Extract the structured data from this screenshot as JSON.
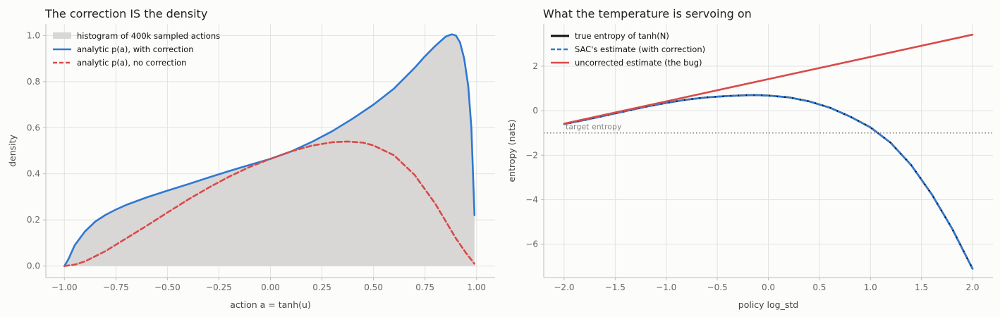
{
  "chart_data": [
    {
      "type": "line",
      "title": "The correction IS the density",
      "xlabel": "action a = tanh(u)",
      "ylabel": "density",
      "xlim": [
        -1.09,
        1.09
      ],
      "ylim": [
        -0.05,
        1.05
      ],
      "xticks": [
        -1.0,
        -0.75,
        -0.5,
        -0.25,
        0.0,
        0.25,
        0.5,
        0.75,
        1.0
      ],
      "xtick_labels": [
        "−1.00",
        "−0.75",
        "−0.50",
        "−0.25",
        "0.00",
        "0.25",
        "0.50",
        "0.75",
        "1.00"
      ],
      "yticks": [
        0.0,
        0.2,
        0.4,
        0.6,
        0.8,
        1.0
      ],
      "ytick_labels": [
        "0.0",
        "0.2",
        "0.4",
        "0.6",
        "0.8",
        "1.0"
      ],
      "grid": true,
      "legend": "top-left",
      "series": [
        {
          "name": "histogram of 400k sampled actions",
          "kind": "area",
          "color": "#d8d7d6",
          "x": [
            -1.0,
            -0.98,
            -0.95,
            -0.9,
            -0.85,
            -0.8,
            -0.75,
            -0.7,
            -0.6,
            -0.5,
            -0.4,
            -0.3,
            -0.2,
            -0.1,
            0.0,
            0.1,
            0.2,
            0.3,
            0.4,
            0.5,
            0.55,
            0.6,
            0.65,
            0.7,
            0.75,
            0.8,
            0.85,
            0.88,
            0.9,
            0.92,
            0.94,
            0.96,
            0.975,
            0.99
          ],
          "values": [
            0.0,
            0.03,
            0.09,
            0.15,
            0.193,
            0.222,
            0.245,
            0.265,
            0.298,
            0.327,
            0.355,
            0.384,
            0.412,
            0.439,
            0.465,
            0.497,
            0.538,
            0.585,
            0.64,
            0.7,
            0.735,
            0.77,
            0.815,
            0.86,
            0.91,
            0.955,
            0.995,
            1.005,
            1.0,
            0.97,
            0.9,
            0.78,
            0.6,
            0.22
          ]
        },
        {
          "name": "analytic p(a), with correction",
          "kind": "line",
          "color": "#2f78d1",
          "dash": "solid",
          "x": [
            -1.0,
            -0.98,
            -0.95,
            -0.9,
            -0.85,
            -0.8,
            -0.75,
            -0.7,
            -0.6,
            -0.5,
            -0.4,
            -0.3,
            -0.2,
            -0.1,
            0.0,
            0.1,
            0.2,
            0.3,
            0.4,
            0.5,
            0.55,
            0.6,
            0.65,
            0.7,
            0.75,
            0.8,
            0.85,
            0.88,
            0.9,
            0.92,
            0.94,
            0.96,
            0.975,
            0.99
          ],
          "values": [
            0.0,
            0.03,
            0.09,
            0.15,
            0.193,
            0.222,
            0.245,
            0.265,
            0.298,
            0.327,
            0.355,
            0.384,
            0.412,
            0.439,
            0.465,
            0.497,
            0.538,
            0.585,
            0.64,
            0.7,
            0.735,
            0.77,
            0.815,
            0.86,
            0.91,
            0.955,
            0.995,
            1.005,
            1.0,
            0.97,
            0.9,
            0.78,
            0.6,
            0.22
          ]
        },
        {
          "name": "analytic p(a), no correction",
          "kind": "line",
          "color": "#d94a48",
          "dash": "dashed",
          "x": [
            -1.0,
            -0.95,
            -0.9,
            -0.8,
            -0.7,
            -0.6,
            -0.5,
            -0.4,
            -0.3,
            -0.2,
            -0.1,
            0.0,
            0.1,
            0.2,
            0.3,
            0.375,
            0.45,
            0.5,
            0.6,
            0.7,
            0.8,
            0.9,
            0.95,
            0.99
          ],
          "values": [
            0.0,
            0.006,
            0.02,
            0.065,
            0.12,
            0.175,
            0.232,
            0.288,
            0.34,
            0.388,
            0.43,
            0.465,
            0.497,
            0.522,
            0.537,
            0.54,
            0.535,
            0.523,
            0.48,
            0.395,
            0.27,
            0.12,
            0.055,
            0.01
          ]
        }
      ]
    },
    {
      "type": "line",
      "title": "What the temperature is servoing on",
      "xlabel": "policy log_std",
      "ylabel": "entropy (nats)",
      "xlim": [
        -2.2,
        2.2
      ],
      "ylim": [
        -7.5,
        3.9
      ],
      "xticks": [
        -2.0,
        -1.5,
        -1.0,
        -0.5,
        0.0,
        0.5,
        1.0,
        1.5,
        2.0
      ],
      "xtick_labels": [
        "−2.0",
        "−1.5",
        "−1.0",
        "−0.5",
        "0.0",
        "0.5",
        "1.0",
        "1.5",
        "2.0"
      ],
      "yticks": [
        -6,
        -4,
        -2,
        0,
        2
      ],
      "ytick_labels": [
        "−6",
        "−4",
        "−2",
        "0",
        "2"
      ],
      "grid": true,
      "legend": "top-left",
      "annotations": [
        {
          "text": "target entropy",
          "y": -1.0
        }
      ],
      "series": [
        {
          "name": "true entropy of tanh(N)",
          "kind": "line",
          "color": "#111111",
          "dash": "solid",
          "x": [
            -2.0,
            -1.8,
            -1.6,
            -1.4,
            -1.2,
            -1.0,
            -0.8,
            -0.6,
            -0.4,
            -0.2,
            -0.1,
            0.0,
            0.2,
            0.4,
            0.6,
            0.8,
            1.0,
            1.2,
            1.4,
            1.6,
            1.8,
            2.0
          ],
          "values": [
            -0.6,
            -0.42,
            -0.22,
            -0.02,
            0.18,
            0.35,
            0.5,
            0.6,
            0.66,
            0.7,
            0.7,
            0.68,
            0.6,
            0.42,
            0.14,
            -0.26,
            -0.75,
            -1.45,
            -2.45,
            -3.75,
            -5.3,
            -7.1
          ]
        },
        {
          "name": "SAC's estimate (with correction)",
          "kind": "line",
          "color": "#2f78d1",
          "dash": "dashed",
          "x": [
            -2.0,
            -1.8,
            -1.6,
            -1.4,
            -1.2,
            -1.0,
            -0.8,
            -0.6,
            -0.4,
            -0.2,
            -0.1,
            0.0,
            0.2,
            0.4,
            0.6,
            0.8,
            1.0,
            1.2,
            1.4,
            1.6,
            1.8,
            2.0
          ],
          "values": [
            -0.6,
            -0.42,
            -0.22,
            -0.02,
            0.18,
            0.35,
            0.5,
            0.6,
            0.66,
            0.7,
            0.7,
            0.68,
            0.6,
            0.42,
            0.14,
            -0.26,
            -0.75,
            -1.45,
            -2.45,
            -3.75,
            -5.3,
            -7.1
          ]
        },
        {
          "name": "uncorrected estimate (the bug)",
          "kind": "line",
          "color": "#d94a48",
          "dash": "solid",
          "x": [
            -2.0,
            2.0
          ],
          "values": [
            -0.58,
            3.42
          ]
        },
        {
          "name": "",
          "kind": "line",
          "color": "#777777",
          "dash": "dotted",
          "x": [
            -2.2,
            2.2
          ],
          "values": [
            -1.0,
            -1.0
          ]
        }
      ]
    }
  ]
}
